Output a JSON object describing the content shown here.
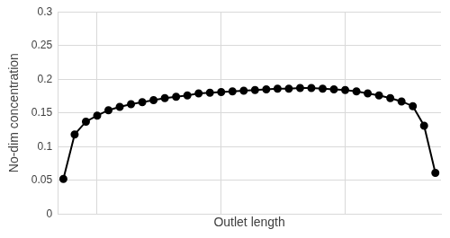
{
  "chart_data": {
    "type": "line",
    "x_label": "Outlet length",
    "y_label": "No-dim concentration",
    "categories": [
      null,
      null,
      null,
      null,
      null,
      null,
      null,
      null,
      null,
      null,
      null,
      null,
      null,
      null,
      null,
      null,
      null,
      null,
      null,
      null,
      null,
      null,
      null,
      null,
      null,
      null,
      null,
      null,
      null,
      null,
      null,
      null,
      null,
      null
    ],
    "values": [
      0.052,
      0.118,
      0.137,
      0.146,
      0.154,
      0.159,
      0.163,
      0.166,
      0.169,
      0.172,
      0.174,
      0.176,
      0.179,
      0.18,
      0.181,
      0.182,
      0.183,
      0.184,
      0.185,
      0.186,
      0.186,
      0.187,
      0.187,
      0.186,
      0.185,
      0.184,
      0.182,
      0.179,
      0.176,
      0.172,
      0.167,
      0.16,
      0.131,
      0.061
    ],
    "color": "#000000",
    "marker": "circle",
    "line_style": "solid",
    "ylim": [
      0,
      0.3
    ],
    "yticks": [
      0,
      0.05,
      0.1,
      0.15,
      0.2,
      0.25,
      0.3
    ],
    "grid": true,
    "tick_labels": "y"
  }
}
